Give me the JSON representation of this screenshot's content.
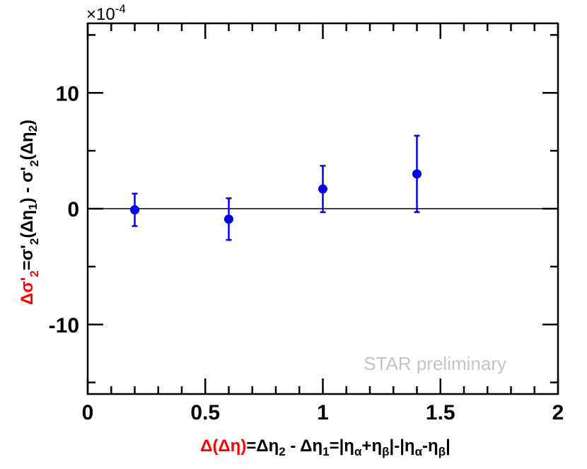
{
  "chart_data": {
    "type": "scatter",
    "x_range": [
      0,
      2
    ],
    "y_range": [
      -16,
      16
    ],
    "y_multiplier_label": "×10",
    "y_multiplier_exponent": "-4",
    "x_ticks": [
      {
        "value": 0,
        "label": "0"
      },
      {
        "value": 0.5,
        "label": "0.5"
      },
      {
        "value": 1,
        "label": "1"
      },
      {
        "value": 1.5,
        "label": "1.5"
      },
      {
        "value": 2,
        "label": "2"
      }
    ],
    "y_ticks": [
      {
        "value": -10,
        "label": "-10"
      },
      {
        "value": 0,
        "label": "0"
      },
      {
        "value": 10,
        "label": "10"
      }
    ],
    "reference_line_y": 0,
    "grid": false,
    "points": [
      {
        "x": 0.2,
        "y": -0.1,
        "yerr": 1.4
      },
      {
        "x": 0.6,
        "y": -0.9,
        "yerr": 1.8
      },
      {
        "x": 1.0,
        "y": 1.7,
        "yerr": 2.0
      },
      {
        "x": 1.4,
        "y": 3.0,
        "yerr": 3.3
      }
    ],
    "marker_color": "#0000ee",
    "highlight_color": "#ff0000",
    "annotation": "STAR preliminary",
    "xlabel_parts": {
      "delta_open": "Δ(Δη)",
      "eq1": "=Δη",
      "sub2": "2",
      "minus": " - Δη",
      "sub1": "1",
      "eq2": "=|η",
      "alpha1": "α",
      "plus": "+η",
      "beta1": "β",
      "mid": "|-|η",
      "alpha2": "α",
      "dash": "-η",
      "beta2": "β",
      "close": "|"
    },
    "ylabel_parts": {
      "red": "Δσ'",
      "red_sub": "2",
      "eq": "=σ'",
      "s1": "2",
      "open1": "(Δη",
      "s2": "1",
      "mid": ") - σ'",
      "s3": "2",
      "open2": "(Δη",
      "s4": "2",
      "close": ")"
    }
  }
}
